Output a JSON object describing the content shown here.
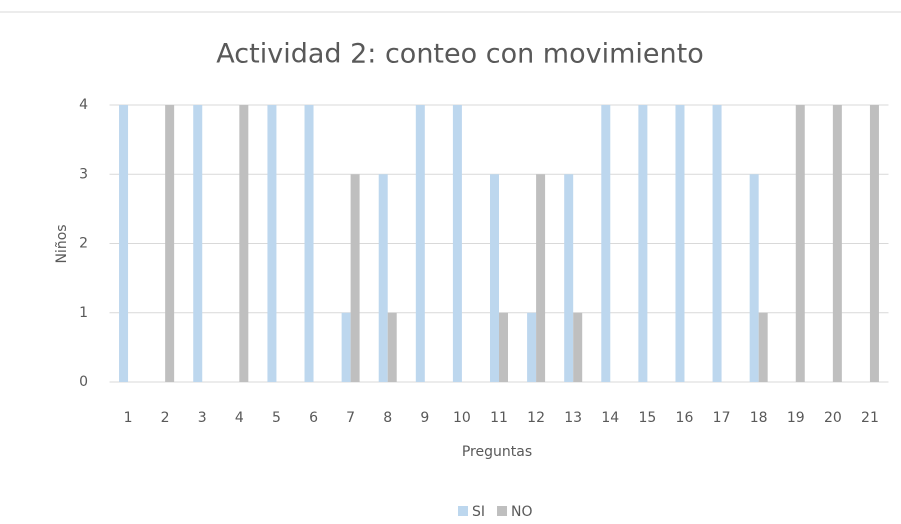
{
  "chart_data": {
    "type": "bar",
    "title": "Actividad 2: conteo  con movimiento",
    "x_label": "Preguntas",
    "y_label": "Niños",
    "categories": [
      "1",
      "2",
      "3",
      "4",
      "5",
      "6",
      "7",
      "8",
      "9",
      "10",
      "11",
      "12",
      "13",
      "14",
      "15",
      "16",
      "17",
      "18",
      "19",
      "20",
      "21"
    ],
    "series": [
      {
        "name": "SI",
        "color": "#bdd7ee",
        "values": [
          4,
          0,
          4,
          0,
          4,
          4,
          1,
          3,
          4,
          4,
          3,
          1,
          3,
          4,
          4,
          4,
          4,
          3,
          0,
          0,
          0
        ]
      },
      {
        "name": "NO",
        "color": "#bfbfbf",
        "values": [
          0,
          4,
          0,
          4,
          0,
          0,
          3,
          1,
          0,
          0,
          1,
          3,
          1,
          0,
          0,
          0,
          0,
          1,
          4,
          4,
          4
        ]
      }
    ],
    "ylim": [
      0,
      4
    ],
    "yticks": [
      0,
      1,
      2,
      3,
      4
    ],
    "grid": true,
    "legend": "bottom"
  }
}
